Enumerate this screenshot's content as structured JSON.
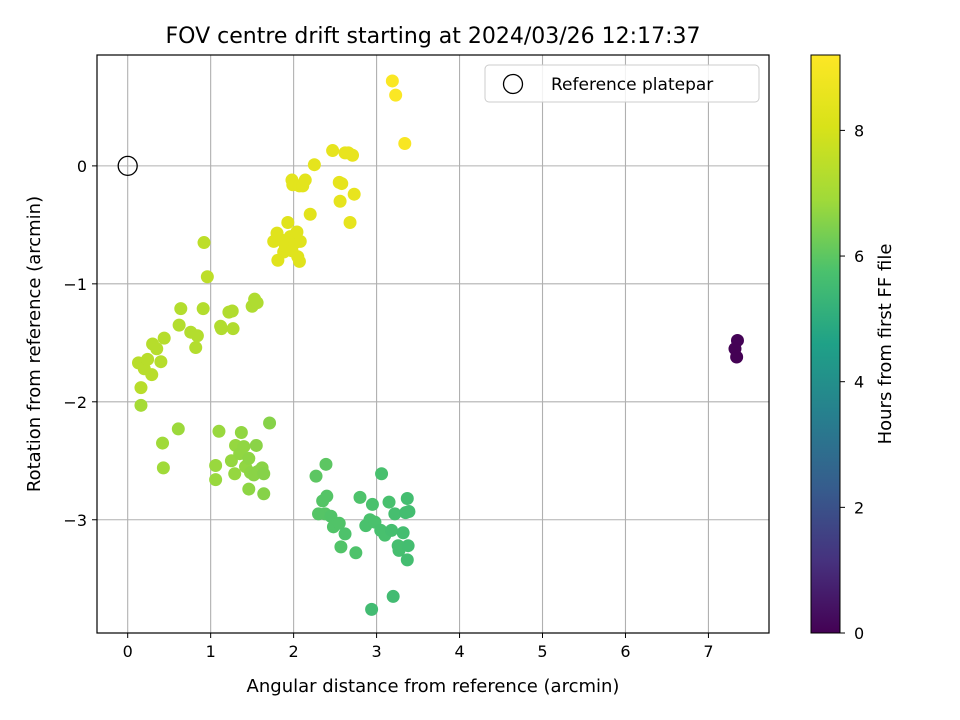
{
  "chart_data": {
    "type": "scatter",
    "title": "FOV centre drift starting at 2024/03/26 12:17:37",
    "xlabel": "Angular distance from reference (arcmin)",
    "ylabel": "Rotation from reference (arcmin)",
    "xlim": [
      -0.37,
      7.73
    ],
    "ylim": [
      -3.96,
      0.94
    ],
    "xticks": [
      0,
      1,
      2,
      3,
      4,
      5,
      6,
      7
    ],
    "yticks": [
      -3,
      -2,
      -1,
      0
    ],
    "xtick_labels": [
      "0",
      "1",
      "2",
      "3",
      "4",
      "5",
      "6",
      "7"
    ],
    "ytick_labels": [
      "−3",
      "−2",
      "−1",
      "0"
    ],
    "grid": true,
    "legend": {
      "position": "upper right",
      "entries": [
        "Reference platepar"
      ]
    },
    "reference_point": {
      "x": 0,
      "y": 0,
      "label": "Reference platepar"
    },
    "colorbar": {
      "label": "Hours from first FF file",
      "colormap": "viridis",
      "range": [
        0,
        9.2
      ],
      "ticks": [
        0,
        2,
        4,
        6,
        8
      ],
      "tick_labels": [
        "0",
        "2",
        "4",
        "6",
        "8"
      ]
    },
    "points": [
      {
        "x": 7.35,
        "y": -1.48,
        "c": 0.05
      },
      {
        "x": 7.32,
        "y": -1.55,
        "c": 0.03
      },
      {
        "x": 7.34,
        "y": -1.62,
        "c": 0.0
      },
      {
        "x": 0.16,
        "y": -2.03,
        "c": 7.0
      },
      {
        "x": 0.42,
        "y": -2.35,
        "c": 6.9
      },
      {
        "x": 0.43,
        "y": -2.56,
        "c": 6.9
      },
      {
        "x": 0.61,
        "y": -2.23,
        "c": 6.85
      },
      {
        "x": 1.1,
        "y": -2.25,
        "c": 6.8
      },
      {
        "x": 1.06,
        "y": -2.54,
        "c": 6.8
      },
      {
        "x": 1.06,
        "y": -2.66,
        "c": 6.8
      },
      {
        "x": 1.25,
        "y": -2.5,
        "c": 6.75
      },
      {
        "x": 1.3,
        "y": -2.37,
        "c": 6.75
      },
      {
        "x": 1.29,
        "y": -2.61,
        "c": 6.75
      },
      {
        "x": 1.35,
        "y": -2.44,
        "c": 6.7
      },
      {
        "x": 1.37,
        "y": -2.26,
        "c": 6.7
      },
      {
        "x": 1.4,
        "y": -2.38,
        "c": 6.7
      },
      {
        "x": 1.42,
        "y": -2.55,
        "c": 6.7
      },
      {
        "x": 1.46,
        "y": -2.48,
        "c": 6.65
      },
      {
        "x": 1.48,
        "y": -2.6,
        "c": 6.65
      },
      {
        "x": 1.46,
        "y": -2.74,
        "c": 6.65
      },
      {
        "x": 1.52,
        "y": -2.62,
        "c": 6.6
      },
      {
        "x": 1.55,
        "y": -2.37,
        "c": 6.6
      },
      {
        "x": 1.57,
        "y": -2.59,
        "c": 6.6
      },
      {
        "x": 1.62,
        "y": -2.56,
        "c": 6.6
      },
      {
        "x": 1.64,
        "y": -2.61,
        "c": 6.55
      },
      {
        "x": 1.64,
        "y": -2.78,
        "c": 6.55
      },
      {
        "x": 1.71,
        "y": -2.18,
        "c": 6.55
      },
      {
        "x": 2.27,
        "y": -2.63,
        "c": 6.0
      },
      {
        "x": 2.39,
        "y": -2.53,
        "c": 6.0
      },
      {
        "x": 2.35,
        "y": -2.84,
        "c": 5.9
      },
      {
        "x": 2.38,
        "y": -2.95,
        "c": 5.9
      },
      {
        "x": 2.3,
        "y": -2.95,
        "c": 5.9
      },
      {
        "x": 2.4,
        "y": -2.8,
        "c": 5.9
      },
      {
        "x": 2.45,
        "y": -2.97,
        "c": 5.85
      },
      {
        "x": 2.48,
        "y": -3.06,
        "c": 5.85
      },
      {
        "x": 2.55,
        "y": -3.03,
        "c": 5.85
      },
      {
        "x": 2.57,
        "y": -3.23,
        "c": 5.85
      },
      {
        "x": 2.62,
        "y": -3.12,
        "c": 5.8
      },
      {
        "x": 2.75,
        "y": -3.28,
        "c": 5.8
      },
      {
        "x": 2.8,
        "y": -2.81,
        "c": 5.8
      },
      {
        "x": 2.87,
        "y": -3.05,
        "c": 5.75
      },
      {
        "x": 2.92,
        "y": -3.0,
        "c": 5.75
      },
      {
        "x": 2.95,
        "y": -2.87,
        "c": 5.75
      },
      {
        "x": 2.98,
        "y": -3.02,
        "c": 5.75
      },
      {
        "x": 3.06,
        "y": -2.61,
        "c": 5.7
      },
      {
        "x": 3.05,
        "y": -3.09,
        "c": 5.7
      },
      {
        "x": 3.1,
        "y": -3.13,
        "c": 5.7
      },
      {
        "x": 3.15,
        "y": -2.85,
        "c": 5.7
      },
      {
        "x": 3.18,
        "y": -3.09,
        "c": 5.65
      },
      {
        "x": 3.22,
        "y": -2.95,
        "c": 5.65
      },
      {
        "x": 3.26,
        "y": -3.22,
        "c": 5.65
      },
      {
        "x": 3.27,
        "y": -3.26,
        "c": 5.65
      },
      {
        "x": 3.32,
        "y": -3.11,
        "c": 5.6
      },
      {
        "x": 3.35,
        "y": -2.94,
        "c": 5.6
      },
      {
        "x": 3.37,
        "y": -2.82,
        "c": 5.6
      },
      {
        "x": 3.38,
        "y": -3.22,
        "c": 5.6
      },
      {
        "x": 3.37,
        "y": -3.34,
        "c": 5.6
      },
      {
        "x": 3.39,
        "y": -2.93,
        "c": 5.6
      },
      {
        "x": 2.94,
        "y": -3.76,
        "c": 5.55
      },
      {
        "x": 3.2,
        "y": -3.65,
        "c": 5.55
      },
      {
        "x": 0.13,
        "y": -1.67,
        "c": 7.4
      },
      {
        "x": 0.16,
        "y": -1.88,
        "c": 7.4
      },
      {
        "x": 0.2,
        "y": -1.72,
        "c": 7.4
      },
      {
        "x": 0.24,
        "y": -1.64,
        "c": 7.4
      },
      {
        "x": 0.29,
        "y": -1.77,
        "c": 7.4
      },
      {
        "x": 0.3,
        "y": -1.51,
        "c": 7.35
      },
      {
        "x": 0.35,
        "y": -1.55,
        "c": 7.35
      },
      {
        "x": 0.4,
        "y": -1.66,
        "c": 7.35
      },
      {
        "x": 0.44,
        "y": -1.46,
        "c": 7.35
      },
      {
        "x": 0.62,
        "y": -1.35,
        "c": 7.3
      },
      {
        "x": 0.64,
        "y": -1.21,
        "c": 7.3
      },
      {
        "x": 0.76,
        "y": -1.41,
        "c": 7.3
      },
      {
        "x": 0.82,
        "y": -1.54,
        "c": 7.3
      },
      {
        "x": 0.84,
        "y": -1.44,
        "c": 7.3
      },
      {
        "x": 0.92,
        "y": -0.65,
        "c": 7.5
      },
      {
        "x": 0.96,
        "y": -0.94,
        "c": 7.5
      },
      {
        "x": 0.91,
        "y": -1.21,
        "c": 7.3
      },
      {
        "x": 1.12,
        "y": -1.36,
        "c": 7.25
      },
      {
        "x": 1.13,
        "y": -1.38,
        "c": 7.25
      },
      {
        "x": 1.22,
        "y": -1.24,
        "c": 7.25
      },
      {
        "x": 1.26,
        "y": -1.23,
        "c": 7.25
      },
      {
        "x": 1.27,
        "y": -1.38,
        "c": 7.25
      },
      {
        "x": 1.5,
        "y": -1.19,
        "c": 7.2
      },
      {
        "x": 1.53,
        "y": -1.13,
        "c": 7.2
      },
      {
        "x": 1.56,
        "y": -1.16,
        "c": 7.2
      },
      {
        "x": 1.76,
        "y": -0.64,
        "c": 8.3
      },
      {
        "x": 1.8,
        "y": -0.57,
        "c": 8.3
      },
      {
        "x": 1.81,
        "y": -0.8,
        "c": 8.3
      },
      {
        "x": 1.86,
        "y": -0.63,
        "c": 8.3
      },
      {
        "x": 1.88,
        "y": -0.73,
        "c": 8.3
      },
      {
        "x": 1.9,
        "y": -0.68,
        "c": 8.3
      },
      {
        "x": 1.93,
        "y": -0.48,
        "c": 8.3
      },
      {
        "x": 1.96,
        "y": -0.6,
        "c": 8.3
      },
      {
        "x": 1.98,
        "y": -0.72,
        "c": 8.3
      },
      {
        "x": 2.02,
        "y": -0.65,
        "c": 8.3
      },
      {
        "x": 2.05,
        "y": -0.77,
        "c": 8.3
      },
      {
        "x": 2.07,
        "y": -0.81,
        "c": 8.3
      },
      {
        "x": 2.08,
        "y": -0.64,
        "c": 8.3
      },
      {
        "x": 2.04,
        "y": -0.56,
        "c": 8.3
      },
      {
        "x": 2.2,
        "y": -0.41,
        "c": 8.35
      },
      {
        "x": 1.98,
        "y": -0.12,
        "c": 8.4
      },
      {
        "x": 1.99,
        "y": -0.16,
        "c": 8.4
      },
      {
        "x": 2.07,
        "y": -0.17,
        "c": 8.4
      },
      {
        "x": 2.11,
        "y": -0.17,
        "c": 8.4
      },
      {
        "x": 2.14,
        "y": -0.12,
        "c": 8.4
      },
      {
        "x": 2.25,
        "y": 0.01,
        "c": 8.45
      },
      {
        "x": 2.47,
        "y": 0.13,
        "c": 8.5
      },
      {
        "x": 2.55,
        "y": -0.14,
        "c": 8.5
      },
      {
        "x": 2.58,
        "y": -0.15,
        "c": 8.5
      },
      {
        "x": 2.56,
        "y": -0.3,
        "c": 8.5
      },
      {
        "x": 2.62,
        "y": 0.11,
        "c": 8.55
      },
      {
        "x": 2.66,
        "y": 0.11,
        "c": 8.55
      },
      {
        "x": 2.71,
        "y": 0.09,
        "c": 8.55
      },
      {
        "x": 2.73,
        "y": -0.24,
        "c": 8.55
      },
      {
        "x": 2.68,
        "y": -0.48,
        "c": 8.5
      },
      {
        "x": 3.19,
        "y": 0.72,
        "c": 9.1
      },
      {
        "x": 3.23,
        "y": 0.6,
        "c": 9.1
      },
      {
        "x": 3.34,
        "y": 0.19,
        "c": 9.05
      }
    ]
  }
}
